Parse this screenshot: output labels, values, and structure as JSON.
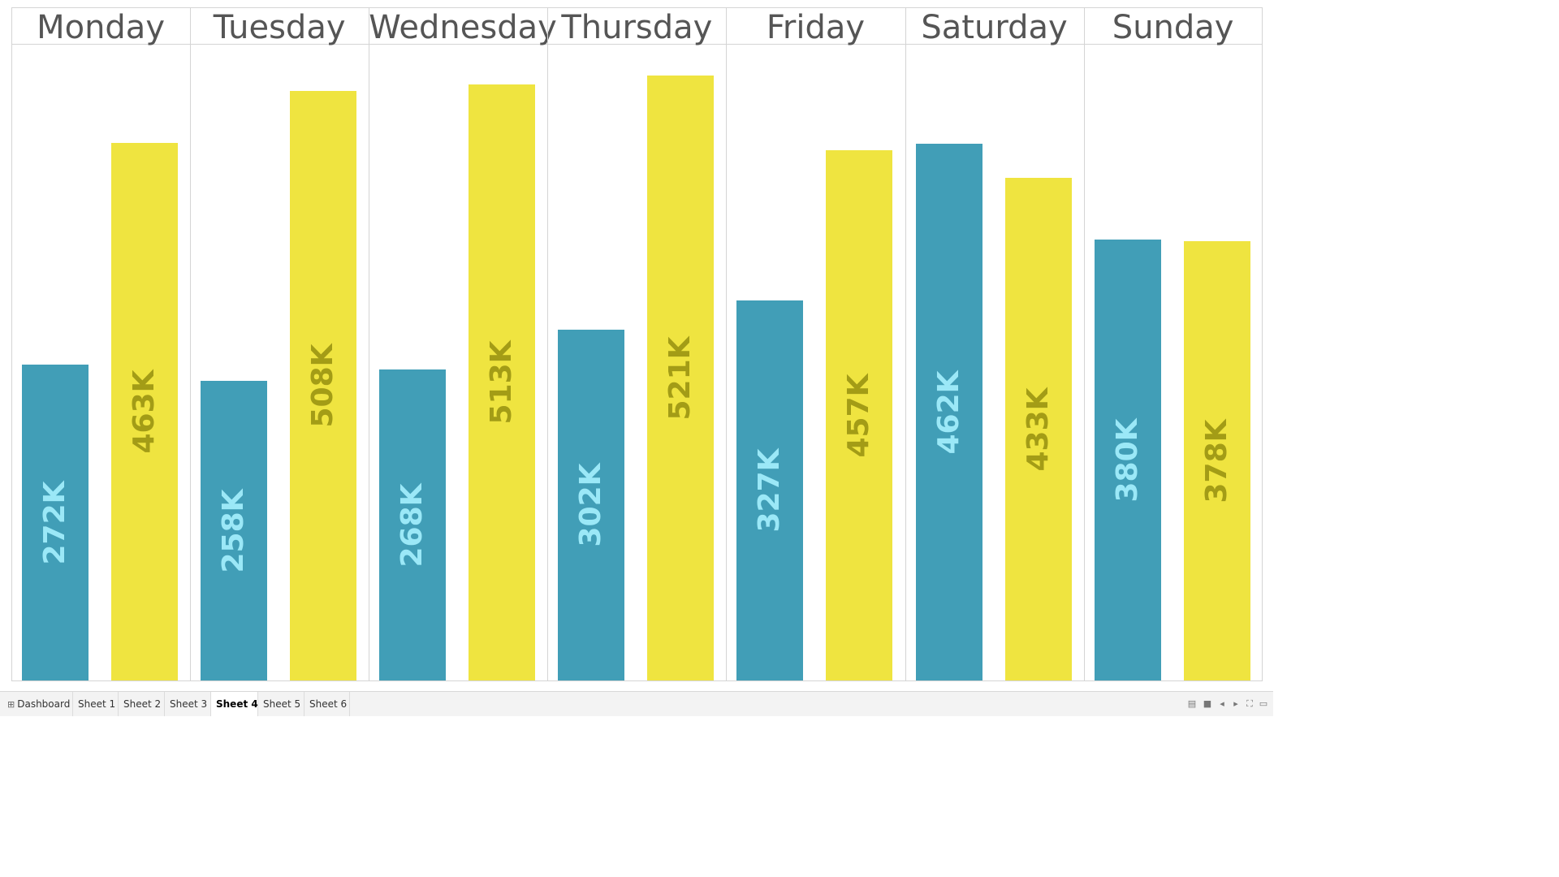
{
  "chart_data": {
    "type": "bar",
    "categories": [
      "Monday",
      "Tuesday",
      "Wednesday",
      "Thursday",
      "Friday",
      "Saturday",
      "Sunday"
    ],
    "series": [
      {
        "values": [
          272000,
          258000,
          268000,
          302000,
          327000,
          462000,
          380000
        ],
        "labels": [
          "272K",
          "258K",
          "268K",
          "302K",
          "327K",
          "462K",
          "380K"
        ],
        "color": "#419eb7",
        "label_color": "#9be8f7"
      },
      {
        "values": [
          463000,
          508000,
          513000,
          521000,
          457000,
          433000,
          378000
        ],
        "labels": [
          "463K",
          "508K",
          "513K",
          "521K",
          "457K",
          "433K",
          "378K"
        ],
        "color": "#efe440",
        "label_color": "#a39c16"
      }
    ],
    "ylim": [
      0,
      580000
    ],
    "grid": false,
    "title": "",
    "xlabel": "",
    "ylabel": ""
  },
  "tabs": [
    {
      "label": "Dashboard",
      "icon": "dashboard-grid-icon"
    },
    {
      "label": "Sheet 1"
    },
    {
      "label": "Sheet 2"
    },
    {
      "label": "Sheet 3"
    },
    {
      "label": "Sheet 4",
      "active": true
    },
    {
      "label": "Sheet 5"
    },
    {
      "label": "Sheet 6"
    }
  ],
  "controls": [
    {
      "name": "show-sheet-sorter-icon",
      "glyph": "▤"
    },
    {
      "name": "show-filmstrip-icon",
      "glyph": "■"
    },
    {
      "name": "previous-sheet-icon",
      "glyph": "◂"
    },
    {
      "name": "next-sheet-icon",
      "glyph": "▸"
    },
    {
      "name": "full-screen-icon",
      "glyph": "⛶"
    },
    {
      "name": "presentation-mode-icon",
      "glyph": "▭"
    }
  ]
}
